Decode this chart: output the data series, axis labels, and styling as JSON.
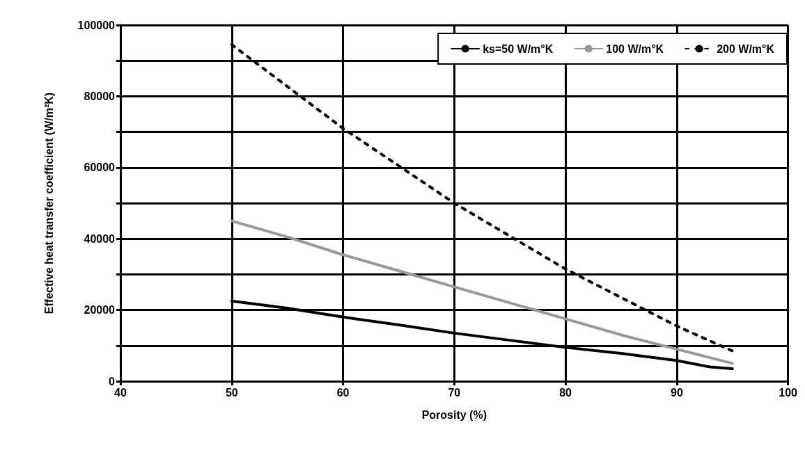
{
  "chart_data": {
    "type": "line",
    "xlabel": "Porosity (%)",
    "ylabel": "Effective heat transfer coefficient (W/m²K)",
    "xlim": [
      40,
      100
    ],
    "xticks": [
      40,
      50,
      60,
      70,
      80,
      90,
      100
    ],
    "ylim": [
      0,
      100000
    ],
    "yticks": [
      0,
      {
        "value": 10000,
        "label": null
      },
      20000,
      {
        "value": 30000,
        "label": null
      },
      40000,
      {
        "value": 50000,
        "label": null
      },
      60000,
      {
        "value": 70000,
        "label": null
      },
      80000,
      {
        "value": 90000,
        "label": null
      },
      100000
    ],
    "grid": true,
    "legend": "top right",
    "marker": "none",
    "series": [
      {
        "name": "ks=50 W/m°K",
        "color": "#000000",
        "line_style": "solid",
        "x": [
          50,
          55,
          60,
          65,
          70,
          75,
          80,
          85,
          90,
          93,
          95
        ],
        "values": [
          22500,
          20500,
          18000,
          15800,
          13500,
          11500,
          9500,
          7800,
          5800,
          4000,
          3500
        ]
      },
      {
        "name": "100 W/m°K",
        "color": "#999999",
        "line_style": "solid",
        "x": [
          50,
          55,
          60,
          65,
          70,
          75,
          80,
          85,
          90,
          95
        ],
        "values": [
          45000,
          40500,
          35500,
          31000,
          26500,
          22000,
          17500,
          13000,
          9000,
          5000
        ]
      },
      {
        "name": "200 W/m°K",
        "color": "#000000",
        "line_style": "dashed",
        "x": [
          50,
          60,
          70,
          80,
          90,
          95
        ],
        "values": [
          94500,
          71000,
          50000,
          31500,
          15500,
          8500
        ]
      }
    ]
  }
}
